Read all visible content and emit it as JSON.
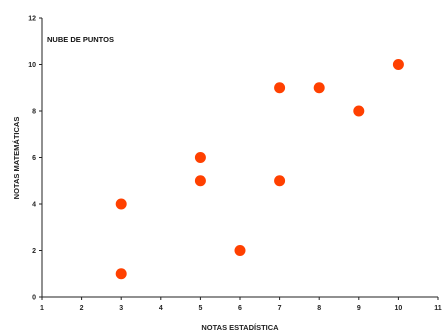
{
  "chart_data": {
    "type": "scatter",
    "title": "NUBE DE PUNTOS",
    "xlabel": "NOTAS ESTADÍSTICA",
    "ylabel": "NOTAS MATEMÁTICAS",
    "xlim": [
      1,
      11
    ],
    "ylim": [
      0,
      12
    ],
    "xticks": [
      1,
      2,
      3,
      4,
      5,
      6,
      7,
      8,
      9,
      10,
      11
    ],
    "yticks": [
      0,
      2,
      4,
      6,
      8,
      10,
      12
    ],
    "grid": false,
    "legend": "none",
    "marker_color": "#ff4000",
    "points": [
      {
        "x": 3,
        "y": 4
      },
      {
        "x": 3,
        "y": 1
      },
      {
        "x": 5,
        "y": 6
      },
      {
        "x": 5,
        "y": 5
      },
      {
        "x": 6,
        "y": 2
      },
      {
        "x": 7,
        "y": 9
      },
      {
        "x": 7,
        "y": 5
      },
      {
        "x": 8,
        "y": 9
      },
      {
        "x": 9,
        "y": 8
      },
      {
        "x": 10,
        "y": 10
      }
    ]
  }
}
